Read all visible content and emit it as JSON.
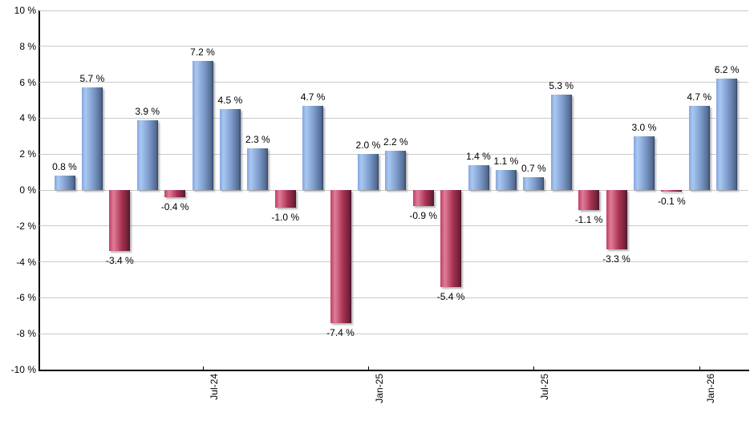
{
  "chart_data": {
    "type": "bar",
    "title": "",
    "xlabel": "",
    "ylabel": "",
    "ylim": [
      -10,
      10
    ],
    "grid": true,
    "legend": "none",
    "values": [
      0.8,
      5.7,
      -3.4,
      3.9,
      -0.4,
      7.2,
      4.5,
      2.3,
      -1.0,
      4.7,
      -7.4,
      2.0,
      2.2,
      -0.9,
      -5.4,
      1.4,
      1.1,
      0.7,
      5.3,
      -1.1,
      -3.3,
      3.0,
      -0.1,
      4.7,
      6.2
    ],
    "bar_labels": [
      "0.8 %",
      "5.7 %",
      "-3.4 %",
      "3.9 %",
      "-0.4 %",
      "7.2 %",
      "4.5 %",
      "2.3 %",
      "-1.0 %",
      "4.7 %",
      "-7.4 %",
      "2.0 %",
      "2.2 %",
      "-0.9 %",
      "-5.4 %",
      "1.4 %",
      "1.1 %",
      "0.7 %",
      "5.3 %",
      "-1.1 %",
      "-3.3 %",
      "3.0 %",
      "-0.1 %",
      "4.7 %",
      "6.2 %"
    ],
    "y_ticks": [
      {
        "label": "10 %",
        "value": 10
      },
      {
        "label": "8 %",
        "value": 8
      },
      {
        "label": "6 %",
        "value": 6
      },
      {
        "label": "4 %",
        "value": 4
      },
      {
        "label": "2 %",
        "value": 2
      },
      {
        "label": "0 %",
        "value": 0
      },
      {
        "label": "-2 %",
        "value": -2
      },
      {
        "label": "-4 %",
        "value": -4
      },
      {
        "label": "-6 %",
        "value": -6
      },
      {
        "label": "-8 %",
        "value": -8
      },
      {
        "label": "-10 %",
        "value": -10
      }
    ],
    "x_ticks": [
      {
        "label": "Jul-24",
        "bar_index": 5
      },
      {
        "label": "Jan-25",
        "bar_index": 11
      },
      {
        "label": "Jul-25",
        "bar_index": 17
      },
      {
        "label": "Jan-26",
        "bar_index": 23
      }
    ],
    "colors": {
      "positive_bar": "#7e9ccc",
      "positive_bar_light": "#a9c7f1",
      "positive_bar_dark": "#2c4068",
      "negative_bar": "#a83352",
      "negative_bar_light": "#e07c98",
      "negative_bar_dark": "#45142a",
      "gridline": "#c9c9c9",
      "axis": "#000000",
      "label_text": "#000000",
      "background": "#ffffff"
    }
  }
}
